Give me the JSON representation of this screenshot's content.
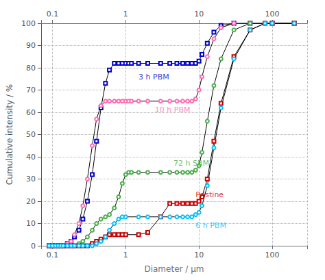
{
  "chart_data": {
    "type": "line",
    "xlabel": "Diameter / μm",
    "ylabel": "Cumulative intensity / %",
    "log": "x",
    "grid": true,
    "xlim": [
      0.07,
      300
    ],
    "ylim": [
      0,
      100
    ],
    "xticks": [
      0.1,
      1,
      10,
      100
    ],
    "yticks": [
      0,
      10,
      20,
      30,
      40,
      50,
      60,
      70,
      80,
      90,
      100
    ],
    "series": [
      {
        "name": "3 h PBM",
        "color": "#0000cc",
        "marker": "square",
        "x": [
          0.09,
          0.1,
          0.11,
          0.12,
          0.13,
          0.14,
          0.16,
          0.18,
          0.2,
          0.23,
          0.26,
          0.3,
          0.35,
          0.4,
          0.46,
          0.53,
          0.6,
          0.7,
          0.8,
          0.9,
          1.0,
          1.1,
          1.2,
          1.5,
          2.0,
          3.0,
          4.0,
          5.0,
          6.0,
          7.0,
          8.0,
          9.0,
          10.0,
          11.0,
          13.0,
          16.0,
          20.0,
          30.0,
          50.0,
          100.0,
          200.0
        ],
        "values": [
          0,
          0,
          0,
          0,
          0,
          0,
          1,
          2,
          4,
          7,
          12,
          20,
          32,
          47,
          62,
          73,
          79,
          82,
          82,
          82,
          82,
          82,
          82,
          82,
          82,
          82,
          82,
          82,
          82,
          82,
          82,
          82,
          83,
          86,
          91,
          96,
          99,
          100,
          100,
          100,
          100
        ]
      },
      {
        "name": "10 h PBM",
        "color": "#ff69b4",
        "marker": "circle",
        "x": [
          0.09,
          0.1,
          0.11,
          0.12,
          0.13,
          0.14,
          0.16,
          0.18,
          0.2,
          0.23,
          0.26,
          0.3,
          0.35,
          0.4,
          0.46,
          0.53,
          0.6,
          0.7,
          0.8,
          0.9,
          1.0,
          1.1,
          1.2,
          1.5,
          2.0,
          3.0,
          4.0,
          5.0,
          6.0,
          7.0,
          8.0,
          9.0,
          10.0,
          11.0,
          13.0,
          16.0,
          20.0,
          30.0,
          50.0,
          100.0,
          200.0
        ],
        "values": [
          0,
          0,
          0,
          0,
          0,
          0,
          1,
          2,
          5,
          10,
          18,
          30,
          45,
          57,
          63,
          65,
          65,
          65,
          65,
          65,
          65,
          65,
          65,
          65,
          65,
          65,
          65,
          65,
          65,
          65,
          65,
          66,
          70,
          76,
          85,
          93,
          98,
          100,
          100,
          100,
          100
        ]
      },
      {
        "name": "72 h SBM",
        "color": "#4aae4a",
        "marker": "circle",
        "x": [
          0.09,
          0.1,
          0.11,
          0.12,
          0.13,
          0.14,
          0.16,
          0.18,
          0.2,
          0.23,
          0.26,
          0.3,
          0.35,
          0.4,
          0.46,
          0.53,
          0.6,
          0.7,
          0.8,
          0.9,
          1.0,
          1.1,
          1.2,
          1.5,
          2.0,
          3.0,
          4.0,
          5.0,
          6.0,
          7.0,
          8.0,
          9.0,
          10.0,
          11.0,
          13.0,
          16.0,
          20.0,
          30.0,
          50.0,
          80.0,
          100.0,
          200.0
        ],
        "values": [
          0,
          0,
          0,
          0,
          0,
          0,
          0,
          0,
          0,
          1,
          2,
          4,
          7,
          10,
          12,
          13,
          14,
          17,
          22,
          28,
          32,
          33,
          33,
          33,
          33,
          33,
          33,
          33,
          33,
          33,
          33,
          34,
          36,
          42,
          56,
          72,
          84,
          97,
          100,
          100,
          100,
          100
        ]
      },
      {
        "name": "Pristine",
        "color": "#cc0000",
        "marker": "square",
        "x": [
          0.09,
          0.1,
          0.11,
          0.12,
          0.13,
          0.14,
          0.16,
          0.18,
          0.2,
          0.23,
          0.26,
          0.3,
          0.35,
          0.4,
          0.46,
          0.53,
          0.6,
          0.7,
          0.8,
          0.9,
          1.0,
          1.5,
          2.0,
          3.0,
          4.0,
          5.0,
          6.0,
          7.0,
          8.0,
          9.0,
          10.0,
          11.0,
          13.0,
          16.0,
          20.0,
          30.0,
          50.0,
          80.0,
          100.0,
          200.0
        ],
        "values": [
          0,
          0,
          0,
          0,
          0,
          0,
          0,
          0,
          0,
          0,
          0,
          0,
          1,
          2,
          3,
          4,
          5,
          5,
          5,
          5,
          5,
          5,
          6,
          13,
          19,
          19,
          19,
          19,
          19,
          19,
          20,
          22,
          30,
          47,
          64,
          85,
          97,
          100,
          100,
          100
        ]
      },
      {
        "name": "6 h PBM",
        "color": "#00bfff",
        "marker": "circle",
        "x": [
          0.09,
          0.1,
          0.11,
          0.12,
          0.13,
          0.14,
          0.16,
          0.18,
          0.2,
          0.23,
          0.26,
          0.3,
          0.35,
          0.4,
          0.46,
          0.53,
          0.6,
          0.7,
          0.8,
          0.9,
          1.0,
          1.5,
          2.0,
          3.0,
          4.0,
          5.0,
          6.0,
          7.0,
          8.0,
          9.0,
          10.0,
          11.0,
          13.0,
          16.0,
          20.0,
          30.0,
          50.0,
          80.0,
          100.0,
          200.0
        ],
        "values": [
          0,
          0,
          0,
          0,
          0,
          0,
          0,
          0,
          0,
          0,
          0,
          0,
          0,
          1,
          2,
          4,
          7,
          10,
          12,
          13,
          13,
          13,
          13,
          13,
          13,
          13,
          13,
          13,
          13,
          14,
          15,
          18,
          27,
          44,
          62,
          84,
          97,
          100,
          100,
          100
        ]
      }
    ],
    "annotations": [
      {
        "text": "3 h PBM",
        "x": 1.5,
        "y": 76,
        "color": "#0000cc"
      },
      {
        "text": "10 h PBM",
        "x": 2.5,
        "y": 61,
        "color": "#ff69b4"
      },
      {
        "text": "72 h SBM",
        "x": 4.5,
        "y": 37,
        "color": "#4aae4a"
      },
      {
        "text": "Pristine",
        "x": 9.0,
        "y": 23,
        "color": "#cc0000"
      },
      {
        "text": "6 h PBM",
        "x": 9.0,
        "y": 9,
        "color": "#00bfff"
      }
    ]
  }
}
